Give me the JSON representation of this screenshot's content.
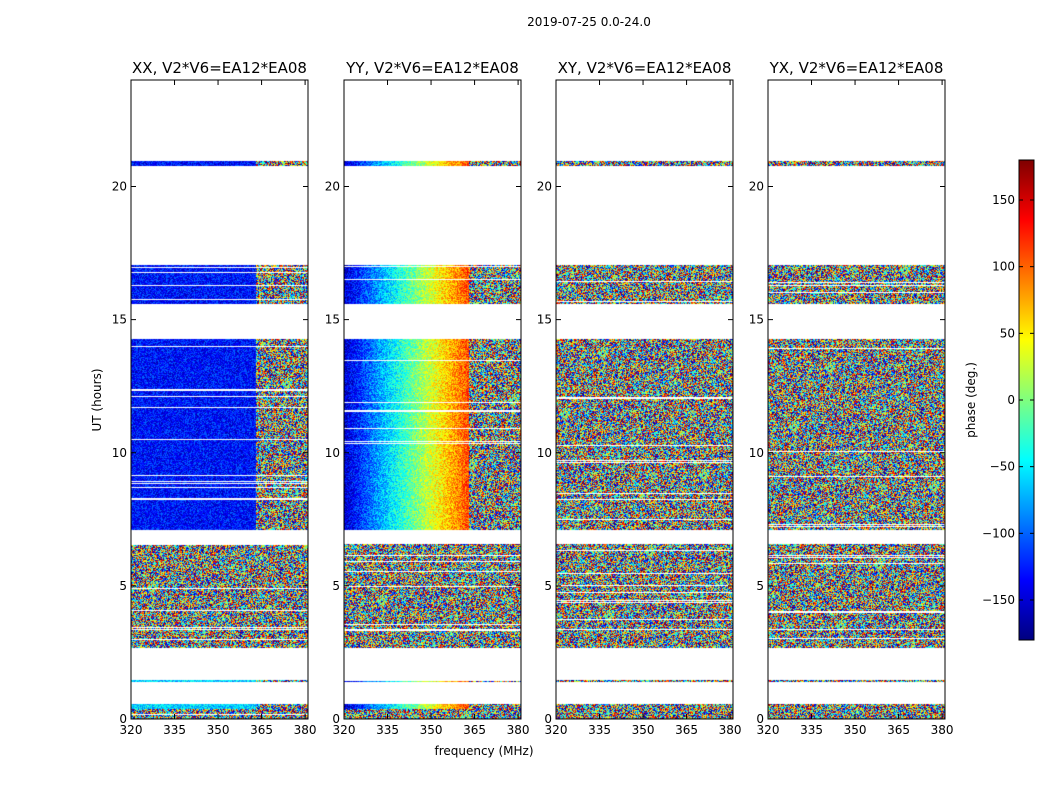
{
  "chart_data": {
    "type": "heatmap",
    "title": "2019-07-25 0.0-24.0",
    "xlabel": "frequency (MHz)",
    "ylabel": "UT (hours)",
    "xlim": [
      320,
      381
    ],
    "ylim": [
      0,
      24
    ],
    "xticks": [
      320,
      335,
      350,
      365,
      380
    ],
    "yticks": [
      0,
      5,
      10,
      15,
      20
    ],
    "colorbar": {
      "label": "phase (deg.)",
      "range": [
        -180,
        180
      ],
      "ticks": [
        -150,
        -100,
        -50,
        0,
        50,
        100,
        150
      ],
      "colors": [
        "#00007f",
        "#0000ff",
        "#007fff",
        "#00ffff",
        "#7fff7f",
        "#ffff00",
        "#ff7f00",
        "#ff0000",
        "#7f0000"
      ]
    },
    "panels": [
      {
        "title": "XX, V2*V6=EA12*EA08",
        "mode": "coherent",
        "lowband_phase": -130,
        "highband_phase": "noise"
      },
      {
        "title": "YY, V2*V6=EA12*EA08",
        "mode": "coherent_gradient",
        "lowband_phase": -110,
        "highband_phase": "noise"
      },
      {
        "title": "XY, V2*V6=EA12*EA08",
        "mode": "noise"
      },
      {
        "title": "YX, V2*V6=EA12*EA08",
        "mode": "noise"
      }
    ],
    "data_blocks_hours": [
      [
        0.0,
        0.3
      ],
      [
        0.4,
        0.5
      ],
      [
        1.4,
        1.4
      ],
      [
        2.7,
        3.3
      ],
      [
        3.4,
        6.5
      ],
      [
        7.1,
        14.2
      ],
      [
        15.6,
        17.0
      ],
      [
        20.8,
        20.9
      ]
    ],
    "coherent_blocks_hours": [
      [
        0.4,
        1.4
      ],
      [
        7.1,
        14.2
      ],
      [
        15.6,
        17.0
      ],
      [
        20.8,
        20.9
      ]
    ]
  }
}
